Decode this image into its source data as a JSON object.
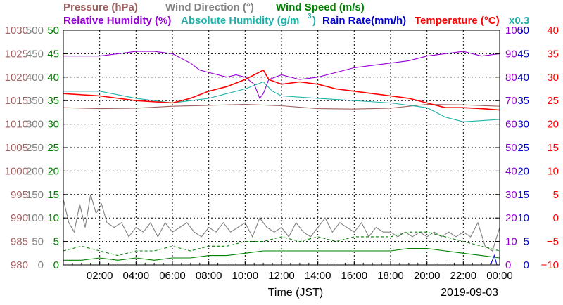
{
  "chart_data": {
    "type": "line",
    "date": "2019-09-03",
    "xlabel": "Time (JST)",
    "x_ticks": [
      "02:00",
      "04:00",
      "06:00",
      "08:00",
      "10:00",
      "12:00",
      "14:00",
      "16:00",
      "18:00",
      "20:00",
      "22:00",
      "00:00"
    ],
    "xlim_hours": [
      0,
      24
    ],
    "note": "x0.3",
    "grid": true,
    "legend": [
      {
        "id": "pressure",
        "label": "Pressure (hPa)",
        "color": "#a06060"
      },
      {
        "id": "wind_dir",
        "label": "Wind Direction (°)",
        "color": "#808080"
      },
      {
        "id": "wind_speed",
        "label": "Wind Speed (m/s)",
        "color": "#008000"
      },
      {
        "id": "rel_hum",
        "label": "Relative Humidity (%)",
        "color": "#9400d3"
      },
      {
        "id": "abs_hum_a",
        "label": "Absolute Humidity (g/m",
        "color": "#20b2aa"
      },
      {
        "id": "abs_hum_sup",
        "label": "3",
        "color": "#20b2aa"
      },
      {
        "id": "abs_hum_b",
        "label": ")",
        "color": "#20b2aa"
      },
      {
        "id": "rain",
        "label": "Rain Rate(mm/h)",
        "color": "#0000cd"
      },
      {
        "id": "temp",
        "label": "Temperature (°C)",
        "color": "#ff0000"
      }
    ],
    "axes": [
      {
        "id": "pressure",
        "color": "#a06060",
        "ticks": [
          "980",
          "985",
          "990",
          "995",
          "1000",
          "1005",
          "1010",
          "1015",
          "1020",
          "1025",
          "1030"
        ],
        "range": [
          980,
          1030
        ]
      },
      {
        "id": "wind_dir",
        "color": "#808080",
        "ticks": [
          "0",
          "50",
          "100",
          "150",
          "200",
          "250",
          "300",
          "350",
          "400",
          "450",
          "500"
        ],
        "range": [
          0,
          500
        ]
      },
      {
        "id": "wind_speed",
        "color": "#008000",
        "ticks": [
          "0",
          "5",
          "10",
          "15",
          "20",
          "25",
          "30",
          "35",
          "40",
          "45",
          "50"
        ],
        "range": [
          0,
          50
        ]
      },
      {
        "id": "rel_hum",
        "color": "#9400d3",
        "ticks": [
          "0",
          "10",
          "20",
          "30",
          "40",
          "50",
          "60",
          "70",
          "80",
          "90",
          "100"
        ],
        "range": [
          0,
          100
        ]
      },
      {
        "id": "rain",
        "color": "#0000cd",
        "ticks": [
          "0",
          "5",
          "10",
          "15",
          "20",
          "25",
          "30",
          "35",
          "40",
          "45",
          "50"
        ],
        "range": [
          0,
          50
        ]
      },
      {
        "id": "temp",
        "color": "#ff0000",
        "ticks": [
          "−10",
          "−5",
          "0",
          "5",
          "10",
          "15",
          "20",
          "25",
          "30",
          "35",
          "40"
        ],
        "range": [
          -10,
          40
        ]
      }
    ],
    "series": [
      {
        "id": "pressure",
        "name": "Pressure (hPa)",
        "color": "#a06060",
        "axis": "pressure",
        "dash": "",
        "points": [
          [
            0,
            1013.5
          ],
          [
            2,
            1013.3
          ],
          [
            4,
            1013.4
          ],
          [
            6,
            1013.8
          ],
          [
            8,
            1014.0
          ],
          [
            10,
            1014.2
          ],
          [
            12,
            1013.9
          ],
          [
            13,
            1013.6
          ],
          [
            14,
            1013.3
          ],
          [
            16,
            1013.2
          ],
          [
            18,
            1013.4
          ],
          [
            20,
            1014.2
          ],
          [
            22,
            1014.1
          ],
          [
            24,
            1013.8
          ]
        ]
      },
      {
        "id": "wind_dir",
        "name": "Wind Direction (°)",
        "color": "#808080",
        "axis": "wind_dir",
        "dash": "",
        "points": [
          [
            0,
            140
          ],
          [
            0.3,
            90
          ],
          [
            0.6,
            70
          ],
          [
            0.9,
            130
          ],
          [
            1.2,
            80
          ],
          [
            1.5,
            150
          ],
          [
            1.8,
            110
          ],
          [
            2.1,
            130
          ],
          [
            2.4,
            90
          ],
          [
            2.8,
            80
          ],
          [
            3.2,
            90
          ],
          [
            3.6,
            60
          ],
          [
            4.0,
            80
          ],
          [
            4.4,
            70
          ],
          [
            4.8,
            90
          ],
          [
            5.2,
            60
          ],
          [
            5.6,
            90
          ],
          [
            6.0,
            70
          ],
          [
            6.4,
            80
          ],
          [
            6.8,
            90
          ],
          [
            7.2,
            70
          ],
          [
            7.6,
            60
          ],
          [
            8.0,
            80
          ],
          [
            8.4,
            70
          ],
          [
            8.8,
            90
          ],
          [
            9.2,
            70
          ],
          [
            9.6,
            80
          ],
          [
            10.0,
            90
          ],
          [
            10.4,
            60
          ],
          [
            10.8,
            100
          ],
          [
            11.2,
            80
          ],
          [
            11.6,
            70
          ],
          [
            12.0,
            80
          ],
          [
            12.4,
            60
          ],
          [
            12.8,
            90
          ],
          [
            13.2,
            70
          ],
          [
            13.6,
            60
          ],
          [
            14.0,
            80
          ],
          [
            14.4,
            100
          ],
          [
            14.8,
            70
          ],
          [
            15.2,
            90
          ],
          [
            15.6,
            80
          ],
          [
            16.0,
            70
          ],
          [
            16.4,
            90
          ],
          [
            16.8,
            60
          ],
          [
            17.2,
            80
          ],
          [
            17.6,
            70
          ],
          [
            18.0,
            70
          ],
          [
            18.4,
            60
          ],
          [
            18.8,
            70
          ],
          [
            19.2,
            60
          ],
          [
            19.6,
            70
          ],
          [
            20.0,
            60
          ],
          [
            20.4,
            70
          ],
          [
            20.8,
            60
          ],
          [
            21.2,
            70
          ],
          [
            21.6,
            60
          ],
          [
            22.0,
            70
          ],
          [
            22.4,
            60
          ],
          [
            22.8,
            90
          ],
          [
            23.2,
            40
          ],
          [
            23.6,
            30
          ],
          [
            24.0,
            80
          ]
        ]
      },
      {
        "id": "wind_speed_max",
        "name": "Wind Speed (m/s)",
        "color": "#008000",
        "axis": "wind_speed",
        "dash": "4,3",
        "points": [
          [
            0,
            3
          ],
          [
            1,
            4
          ],
          [
            2,
            3
          ],
          [
            3,
            2
          ],
          [
            4,
            3
          ],
          [
            5,
            3
          ],
          [
            6,
            4
          ],
          [
            7,
            3
          ],
          [
            8,
            4
          ],
          [
            9,
            4
          ],
          [
            10,
            5
          ],
          [
            11,
            5
          ],
          [
            12,
            6
          ],
          [
            13,
            5
          ],
          [
            14,
            6
          ],
          [
            15,
            5
          ],
          [
            16,
            6
          ],
          [
            17,
            6
          ],
          [
            18,
            6
          ],
          [
            19,
            7
          ],
          [
            20,
            7
          ],
          [
            21,
            6
          ],
          [
            22,
            5
          ],
          [
            23,
            4
          ],
          [
            24,
            3
          ]
        ]
      },
      {
        "id": "wind_speed_avg",
        "name": "Wind Speed (m/s)",
        "color": "#008000",
        "axis": "wind_speed",
        "dash": "",
        "points": [
          [
            0,
            1
          ],
          [
            1,
            1
          ],
          [
            2,
            1.5
          ],
          [
            3,
            1
          ],
          [
            4,
            1.5
          ],
          [
            5,
            1
          ],
          [
            6,
            1.5
          ],
          [
            7,
            1.5
          ],
          [
            8,
            2
          ],
          [
            9,
            2
          ],
          [
            10,
            2.5
          ],
          [
            11,
            3
          ],
          [
            12,
            3
          ],
          [
            13,
            3
          ],
          [
            14,
            3
          ],
          [
            15,
            3
          ],
          [
            16,
            3
          ],
          [
            17,
            3
          ],
          [
            18,
            3
          ],
          [
            19,
            3.5
          ],
          [
            20,
            3.5
          ],
          [
            21,
            3
          ],
          [
            22,
            2.5
          ],
          [
            23,
            2
          ],
          [
            24,
            1.5
          ]
        ]
      },
      {
        "id": "rel_hum",
        "name": "Relative Humidity (%)",
        "color": "#9400d3",
        "axis": "rel_hum",
        "dash": "",
        "points": [
          [
            0,
            89
          ],
          [
            1,
            89
          ],
          [
            2,
            89
          ],
          [
            3,
            90
          ],
          [
            4,
            91
          ],
          [
            5,
            91
          ],
          [
            6,
            90
          ],
          [
            7,
            86
          ],
          [
            7.5,
            83
          ],
          [
            8,
            82
          ],
          [
            9,
            80
          ],
          [
            9.5,
            81
          ],
          [
            10,
            80
          ],
          [
            10.5,
            77
          ],
          [
            10.8,
            71
          ],
          [
            11,
            73
          ],
          [
            11.3,
            79
          ],
          [
            12,
            81
          ],
          [
            13,
            79
          ],
          [
            14,
            80
          ],
          [
            15,
            82
          ],
          [
            16,
            84
          ],
          [
            17,
            85
          ],
          [
            18,
            86
          ],
          [
            19,
            87
          ],
          [
            20,
            89
          ],
          [
            21,
            90
          ],
          [
            22,
            91
          ],
          [
            23,
            89
          ],
          [
            24,
            90
          ]
        ]
      },
      {
        "id": "abs_hum",
        "name": "Absolute Humidity (g/m³)",
        "color": "#20b2aa",
        "axis": "temp",
        "dash": "",
        "points": [
          [
            0,
            27
          ],
          [
            2,
            27
          ],
          [
            4,
            25.5
          ],
          [
            6,
            24.5
          ],
          [
            8,
            25.5
          ],
          [
            10,
            27.5
          ],
          [
            11,
            29
          ],
          [
            11.5,
            27
          ],
          [
            12,
            26
          ],
          [
            14,
            25.5
          ],
          [
            16,
            25
          ],
          [
            18,
            24.5
          ],
          [
            20,
            23.5
          ],
          [
            21,
            21.5
          ],
          [
            22,
            20.5
          ],
          [
            24,
            21
          ]
        ]
      },
      {
        "id": "temp",
        "name": "Temperature (°C)",
        "color": "#ff0000",
        "axis": "temp",
        "dash": "",
        "points": [
          [
            0,
            26.5
          ],
          [
            2,
            26
          ],
          [
            4,
            25
          ],
          [
            6,
            24.5
          ],
          [
            7,
            25.5
          ],
          [
            8,
            27
          ],
          [
            9,
            28
          ],
          [
            10,
            29.5
          ],
          [
            10.5,
            30.5
          ],
          [
            11,
            31.5
          ],
          [
            11.3,
            29.5
          ],
          [
            12,
            28.5
          ],
          [
            13,
            29
          ],
          [
            14,
            28.5
          ],
          [
            15,
            27.5
          ],
          [
            16,
            27
          ],
          [
            17,
            26.5
          ],
          [
            18,
            26
          ],
          [
            19,
            25.5
          ],
          [
            20,
            24.5
          ],
          [
            21,
            23.5
          ],
          [
            22,
            23.5
          ],
          [
            23,
            23.3
          ],
          [
            24,
            23
          ]
        ]
      },
      {
        "id": "rain",
        "name": "Rain Rate(mm/h)",
        "color": "#0000cd",
        "axis": "rain",
        "dash": "",
        "points": [
          [
            0,
            0
          ],
          [
            23.5,
            0
          ],
          [
            23.7,
            2
          ],
          [
            23.85,
            0
          ],
          [
            24,
            0
          ]
        ]
      }
    ]
  }
}
